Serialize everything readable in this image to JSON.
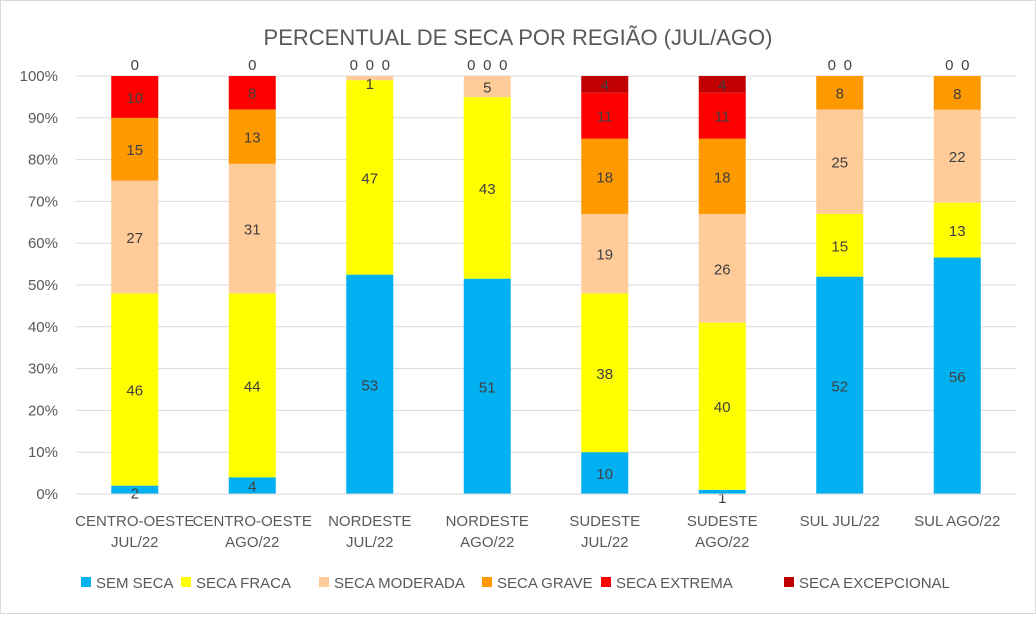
{
  "chart_data": {
    "type": "bar",
    "stacked": "percent",
    "title": "PERCENTUAL DE SECA POR REGIÃO (JUL/AGO)",
    "xlabel": "",
    "ylabel": "",
    "ylim": [
      0,
      100
    ],
    "yticks": [
      "0%",
      "10%",
      "20%",
      "30%",
      "40%",
      "50%",
      "60%",
      "70%",
      "80%",
      "90%",
      "100%"
    ],
    "grid": true,
    "legend_position": "bottom",
    "categories": [
      [
        "CENTRO-OESTE",
        "JUL/22"
      ],
      [
        "CENTRO-OESTE",
        "AGO/22"
      ],
      [
        "NORDESTE",
        "JUL/22"
      ],
      [
        "NORDESTE",
        "AGO/22"
      ],
      [
        "SUDESTE",
        "JUL/22"
      ],
      [
        "SUDESTE",
        "AGO/22"
      ],
      [
        "SUL JUL/22"
      ],
      [
        "SUL AGO/22"
      ]
    ],
    "series": [
      {
        "name": "SEM SECA",
        "color": "#00b0f0",
        "values": [
          2,
          4,
          53,
          51,
          10,
          1,
          52,
          56
        ]
      },
      {
        "name": "SECA FRACA",
        "color": "#ffff00",
        "values": [
          46,
          44,
          47,
          43,
          38,
          40,
          15,
          13
        ]
      },
      {
        "name": "SECA MODERADA",
        "color": "#ffcc99",
        "values": [
          27,
          31,
          1,
          5,
          19,
          26,
          25,
          22
        ]
      },
      {
        "name": "SECA GRAVE",
        "color": "#ff9900",
        "values": [
          15,
          13,
          0,
          0,
          18,
          18,
          8,
          8
        ]
      },
      {
        "name": "SECA EXTREMA",
        "color": "#ff0000",
        "values": [
          10,
          8,
          0,
          0,
          11,
          11,
          0,
          0
        ]
      },
      {
        "name": "SECA EXCEPCIONAL",
        "color": "#c00000",
        "values": [
          0,
          0,
          0,
          0,
          4,
          4,
          0,
          0
        ]
      }
    ]
  }
}
